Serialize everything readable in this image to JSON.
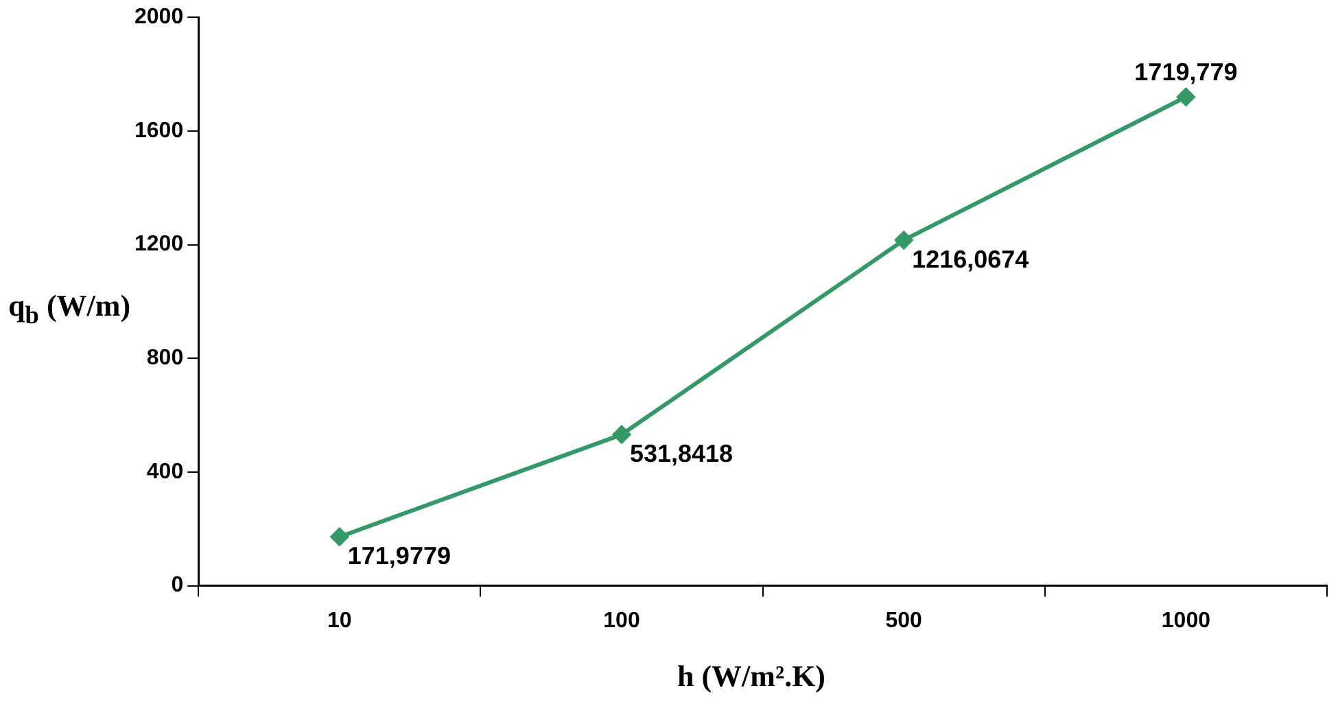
{
  "chart_data": {
    "type": "line",
    "xlabel": "h (W/m².K)",
    "ylabel": "q$_{b}$ (W/m)",
    "categories": [
      "10",
      "100",
      "500",
      "1000"
    ],
    "series": [
      {
        "color": "#339966",
        "values": [
          171.9779,
          531.8418,
          1216.0674,
          1719.779
        ]
      }
    ],
    "value_labels": [
      "171,9779",
      "531,8418",
      "1216,0674",
      "1719,779"
    ],
    "ylim": [
      0,
      2000
    ],
    "yticks": [
      0,
      400,
      800,
      1200,
      1600,
      2000
    ],
    "grid": false,
    "legend": false,
    "marker": "diamond",
    "line_style": "solid"
  }
}
